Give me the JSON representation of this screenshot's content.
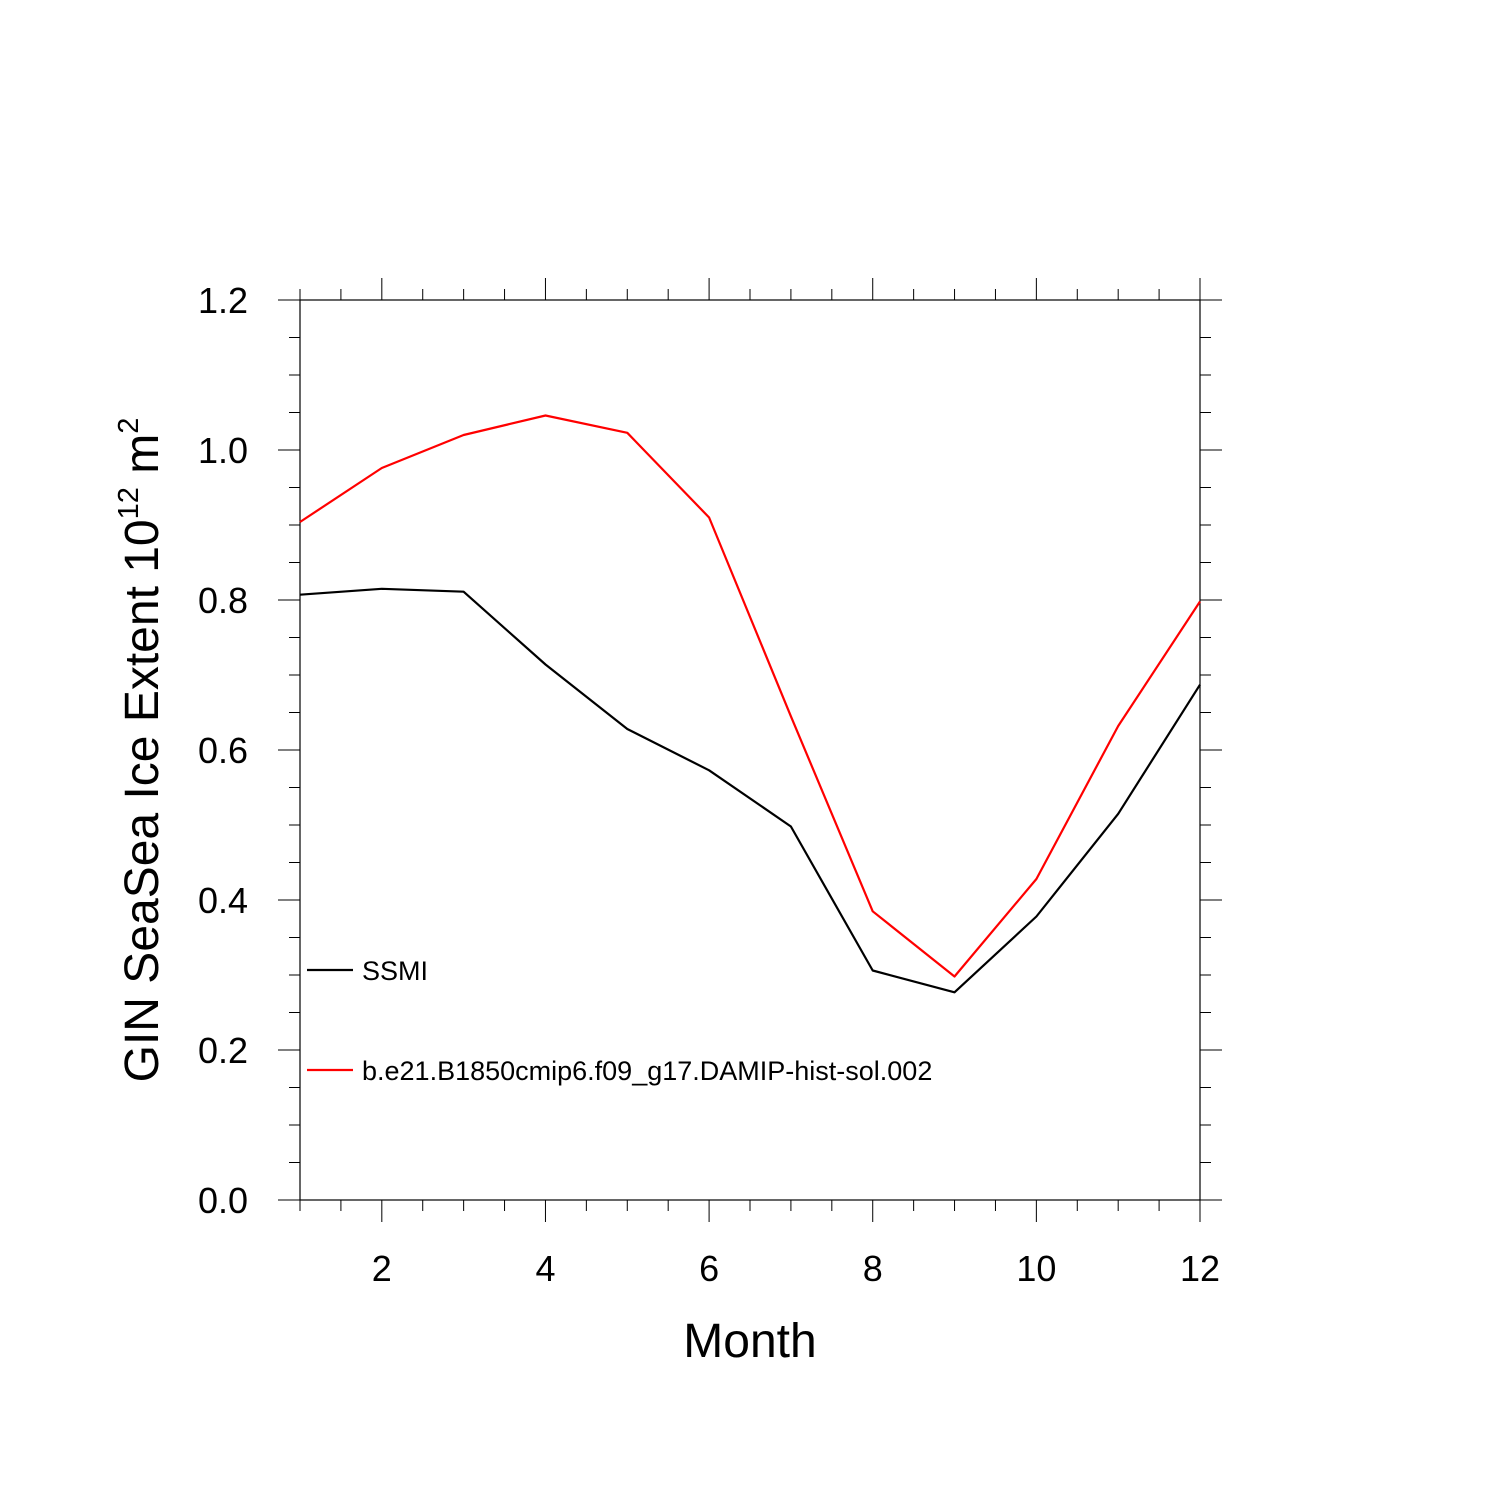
{
  "chart_data": {
    "type": "line",
    "xlabel": "Month",
    "ylabel": {
      "prefix": "GIN SeaSea Ice Extent 10",
      "exponent": "12",
      "unit": " m",
      "unit_exponent": "2"
    },
    "xlim": [
      1,
      12
    ],
    "ylim": [
      0.0,
      1.2
    ],
    "x_ticks": [
      2,
      4,
      6,
      8,
      10,
      12
    ],
    "x_tick_labels": [
      "2",
      "4",
      "6",
      "8",
      "10",
      "12"
    ],
    "y_ticks": [
      0.0,
      0.2,
      0.4,
      0.6,
      0.8,
      1.0,
      1.2
    ],
    "y_tick_labels": [
      "0.0",
      "0.2",
      "0.4",
      "0.6",
      "0.8",
      "1.0",
      "1.2"
    ],
    "grid": false,
    "legend_position": "lower-left",
    "x": [
      1,
      2,
      3,
      4,
      5,
      6,
      7,
      8,
      9,
      10,
      11,
      12
    ],
    "series": [
      {
        "name": "SSMI",
        "color": "#000000",
        "values": [
          0.807,
          0.815,
          0.811,
          0.714,
          0.628,
          0.573,
          0.498,
          0.306,
          0.277,
          0.378,
          0.515,
          0.687
        ]
      },
      {
        "name": "b.e21.B1850cmip6.f09_g17.DAMIP-hist-sol.002",
        "color": "#ff0000",
        "values": [
          0.904,
          0.976,
          1.02,
          1.046,
          1.023,
          0.91,
          0.645,
          0.385,
          0.298,
          0.428,
          0.632,
          0.798
        ]
      }
    ]
  }
}
